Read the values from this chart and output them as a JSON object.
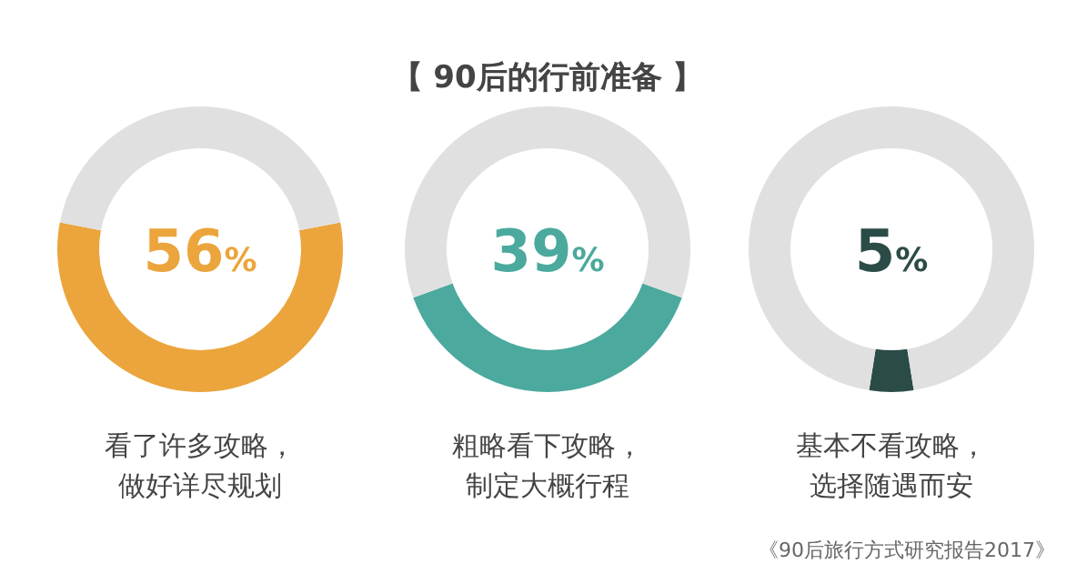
{
  "chart_data": [
    {
      "type": "donut",
      "categories": [
        "看了许多攻略，做好详尽规划",
        null
      ],
      "values": [
        56,
        44
      ],
      "colors": [
        "#eba53c",
        "#e0e0e0"
      ],
      "value_labels": [
        "56%",
        null
      ]
    },
    {
      "type": "donut",
      "title": "【 90后的行前准备 】",
      "categories": [
        "粗略看下攻略，制定大概行程",
        null
      ],
      "values": [
        39,
        61
      ],
      "colors": [
        "#4ba99d",
        "#e0e0e0"
      ],
      "value_labels": [
        "39%",
        null
      ]
    },
    {
      "type": "donut",
      "categories": [
        "基本不看攻略，选择随遇而安",
        null
      ],
      "values": [
        5,
        95
      ],
      "colors": [
        "#2b4b47",
        "#e0e0e0"
      ],
      "value_labels": [
        "5%",
        null
      ],
      "annotations": [
        "《90后旅行方式研究报告2017》"
      ]
    }
  ]
}
